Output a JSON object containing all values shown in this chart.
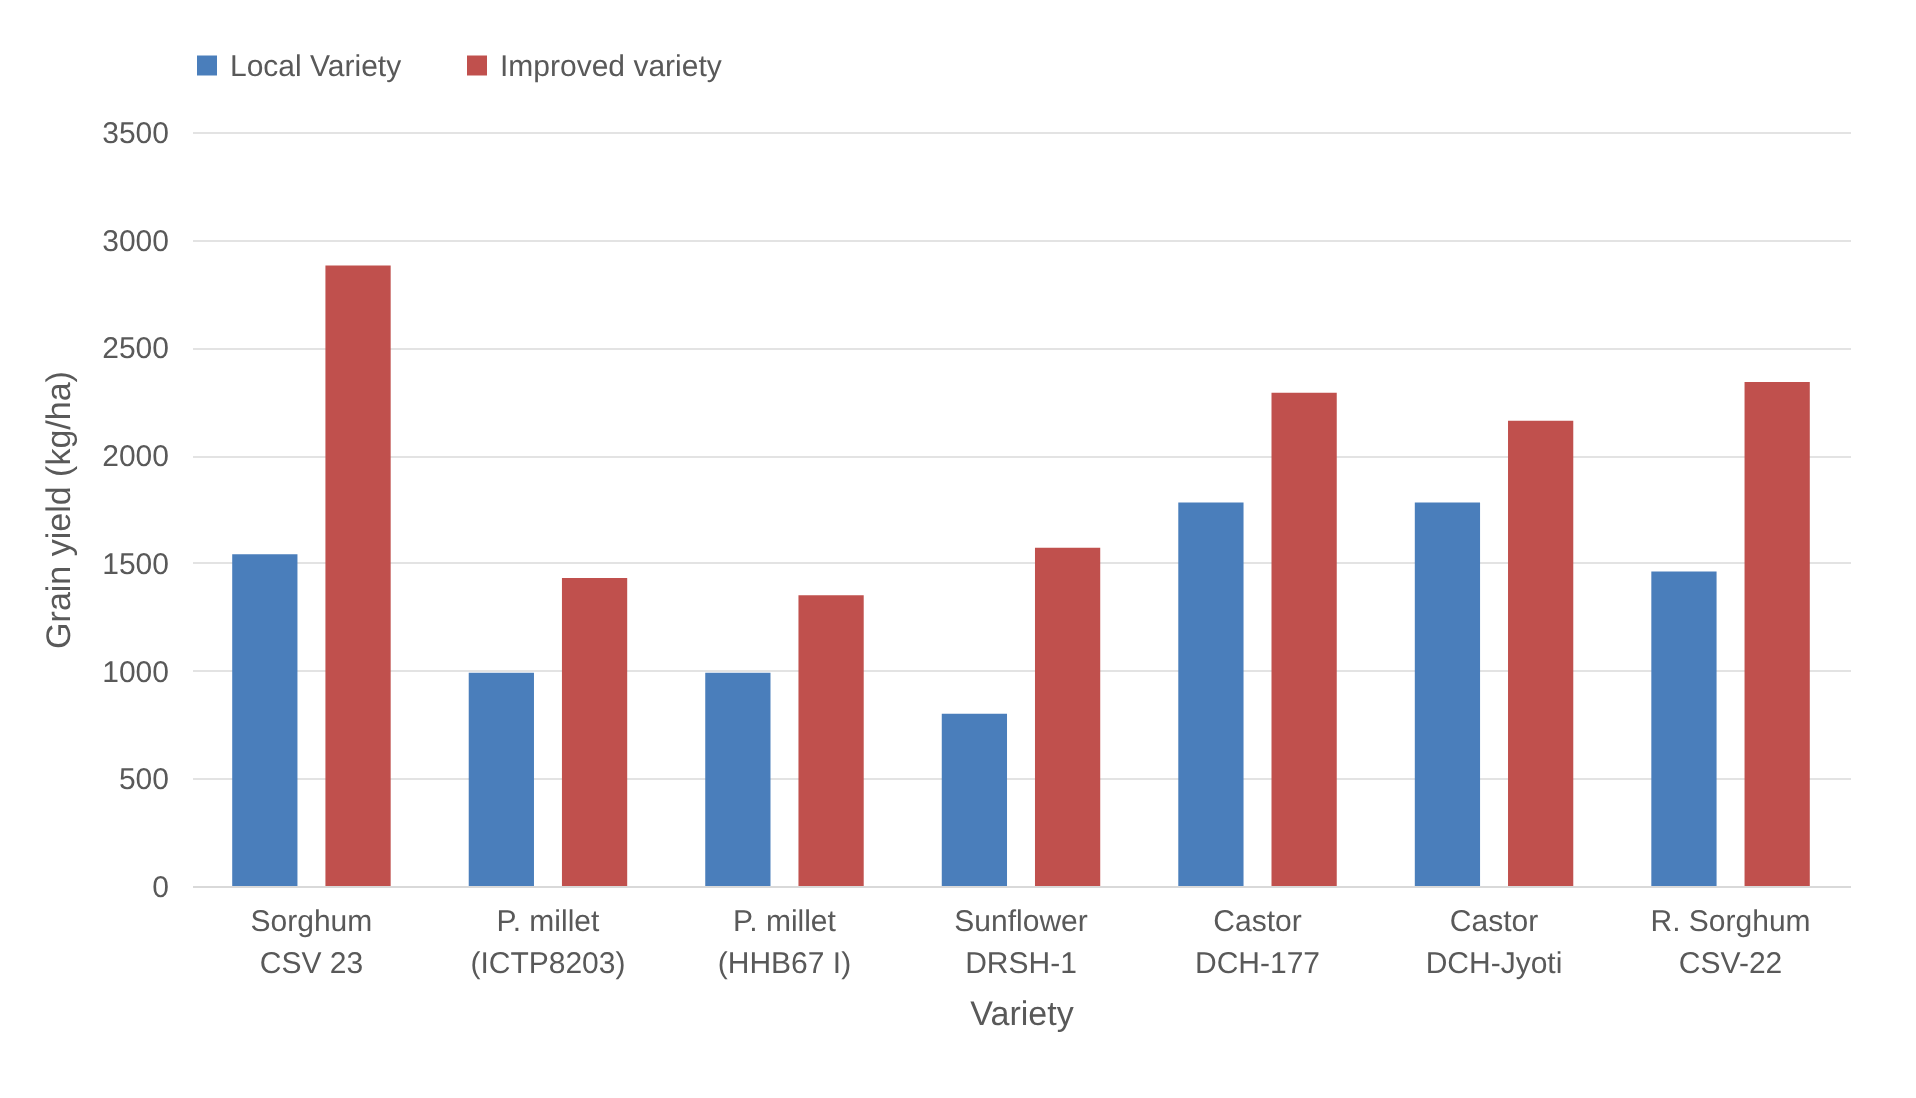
{
  "chart_data": {
    "type": "bar",
    "xlabel": "Variety",
    "ylabel": "Grain yield (kg/ha)",
    "categories": [
      "Sorghum\nCSV 23",
      "P. millet\n(ICTP8203)",
      "P. millet\n(HHB67 I)",
      "Sunflower\nDRSH-1",
      "Castor\nDCH-177",
      "Castor\nDCH-Jyoti",
      "R. Sorghum\nCSV-22"
    ],
    "series": [
      {
        "name": "Local Variety",
        "color": "#4a7ebb",
        "values": [
          1540,
          990,
          990,
          800,
          1780,
          1780,
          1460
        ]
      },
      {
        "name": "Improved variety",
        "color": "#c0504d",
        "values": [
          2880,
          1430,
          1350,
          1570,
          2290,
          2160,
          2340
        ]
      }
    ],
    "ylim": [
      0,
      3500
    ],
    "yticks": [
      0,
      500,
      1000,
      1500,
      2000,
      2500,
      3000,
      3500
    ],
    "grid": "y",
    "legend": "top"
  }
}
